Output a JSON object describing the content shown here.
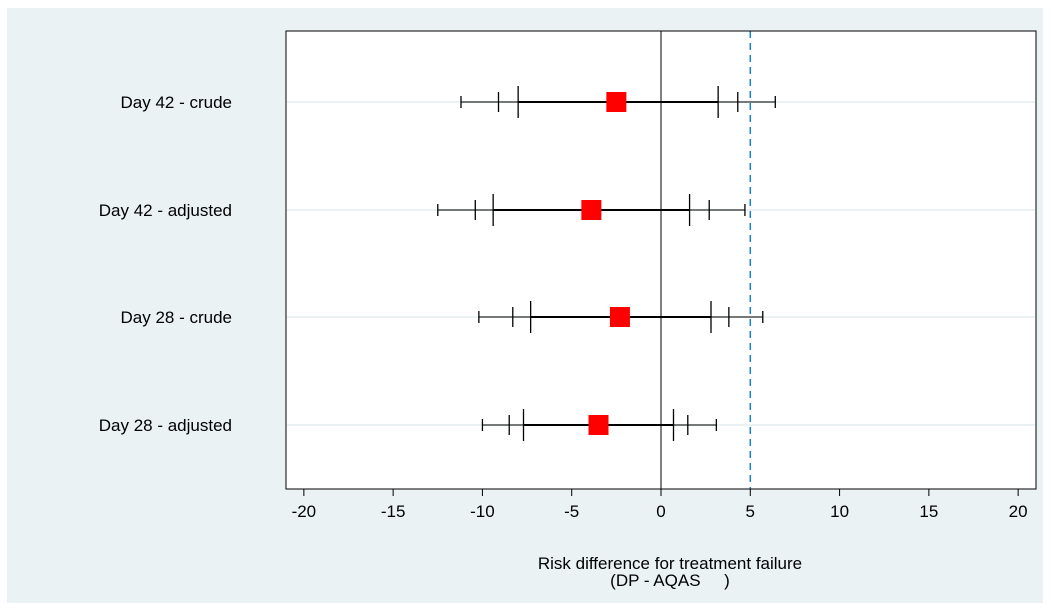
{
  "chart_data": {
    "type": "forest",
    "xlabel": "Risk difference for treatment failure",
    "xlabel_line2": "(DP - AQAS     )",
    "xlim": [
      -21,
      21
    ],
    "x_ticks": [
      -20,
      -15,
      -10,
      -5,
      0,
      5,
      10,
      15,
      20
    ],
    "x_tick_labels": [
      "-20",
      "-15",
      "-10",
      "-5",
      "0",
      "5",
      "10",
      "15",
      "20"
    ],
    "reference_line": 0,
    "margin_line": 5,
    "grid": "horizontal-at-rows",
    "rows": [
      {
        "label": "Day 42 - crude",
        "estimate": -2.5,
        "ci_wide": [
          -11.2,
          6.4
        ],
        "ci_mid": [
          -9.1,
          4.3
        ],
        "ci_inner": [
          -8.0,
          3.2
        ]
      },
      {
        "label": "Day 42 - adjusted",
        "estimate": -3.9,
        "ci_wide": [
          -12.5,
          4.7
        ],
        "ci_mid": [
          -10.4,
          2.7
        ],
        "ci_inner": [
          -9.4,
          1.6
        ]
      },
      {
        "label": "Day 28 - crude",
        "estimate": -2.3,
        "ci_wide": [
          -10.2,
          5.7
        ],
        "ci_mid": [
          -8.3,
          3.8
        ],
        "ci_inner": [
          -7.3,
          2.8
        ]
      },
      {
        "label": "Day 28 - adjusted",
        "estimate": -3.5,
        "ci_wide": [
          -10.0,
          3.1
        ],
        "ci_mid": [
          -8.5,
          1.5
        ],
        "ci_inner": [
          -7.7,
          0.7
        ]
      }
    ],
    "colors": {
      "outer_background": "#eaf2f3",
      "plot_background": "#ffffff",
      "gridline": "#eaf2f3",
      "estimate_marker": "#ff0000",
      "margin_line": "#1a7fd6",
      "ink": "#000000"
    }
  }
}
